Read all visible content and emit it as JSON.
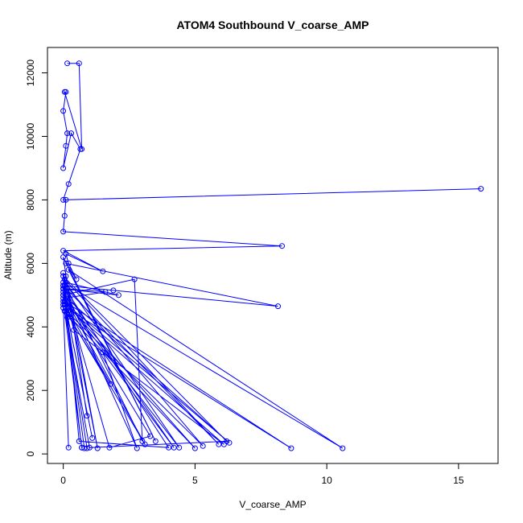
{
  "chart_data": {
    "type": "line",
    "title": "ATOM4 Southbound V_coarse_AMP",
    "xlabel": "V_coarse_AMP",
    "ylabel": "Altitude (m)",
    "xlim": [
      -0.6,
      16.5
    ],
    "ylim": [
      -300,
      12800
    ],
    "xticks": [
      0,
      5,
      10,
      15
    ],
    "yticks": [
      0,
      2000,
      4000,
      6000,
      8000,
      10000,
      12000
    ],
    "grid": false,
    "legend": "none",
    "series_color": "#0000ff",
    "marker": "open-circle",
    "series": [
      {
        "x": [
          0.15,
          0.6,
          0.7,
          0.05,
          0.1,
          0.0,
          0.15,
          0.1,
          0.0,
          0.3,
          0.65,
          0.2,
          0.0,
          15.85,
          0.1,
          0.05,
          0.0,
          8.3,
          0.0,
          1.5,
          0.1,
          0.2,
          0.5,
          0.1,
          8.15,
          1.9,
          0.05,
          0.0,
          6.3,
          0.0,
          2.7,
          3.0,
          0.15,
          1.6,
          0.0,
          4.4,
          0.1,
          2.1,
          0.0,
          0.4,
          6.1,
          0.05,
          1.8,
          0.0,
          5.3,
          0.0,
          10.6,
          0.2,
          3.5,
          0.0,
          0.9,
          0.1,
          1.3,
          0.0,
          0.15,
          0.05,
          5.9,
          0.0,
          2.8,
          1.5,
          4.2,
          0.0,
          0.7,
          0.1,
          3.1,
          0.0,
          1.1,
          0.15,
          5.0,
          0.05,
          0.9,
          0.0,
          3.3,
          1.75,
          0.3,
          0.0,
          4.0,
          0.6,
          0.1,
          0.0,
          6.2,
          1.0,
          0.05,
          0.7,
          0.0,
          0.8,
          0.1,
          8.65,
          0.05,
          0.0,
          0.2
        ],
        "y": [
          12300,
          12300,
          9600,
          11400,
          11400,
          10800,
          10100,
          9700,
          9000,
          10100,
          9600,
          8500,
          8000,
          8350,
          8000,
          7500,
          7000,
          6550,
          6400,
          5750,
          6300,
          6000,
          5500,
          6000,
          4650,
          5150,
          5300,
          4800,
          350,
          5000,
          5500,
          400,
          5200,
          5100,
          4900,
          200,
          5400,
          5000,
          5200,
          3900,
          300,
          4700,
          2200,
          4600,
          250,
          5400,
          180,
          5800,
          400,
          6200,
          1200,
          5600,
          180,
          5700,
          4300,
          5500,
          300,
          5300,
          180,
          3200,
          200,
          5200,
          200,
          4500,
          300,
          5000,
          500,
          4400,
          180,
          4800,
          180,
          5100,
          560,
          200,
          4400,
          5300,
          200,
          400,
          4900,
          5600,
          400,
          200,
          4500,
          200,
          5200,
          180,
          4600,
          180,
          4800,
          4700,
          200
        ]
      }
    ]
  }
}
